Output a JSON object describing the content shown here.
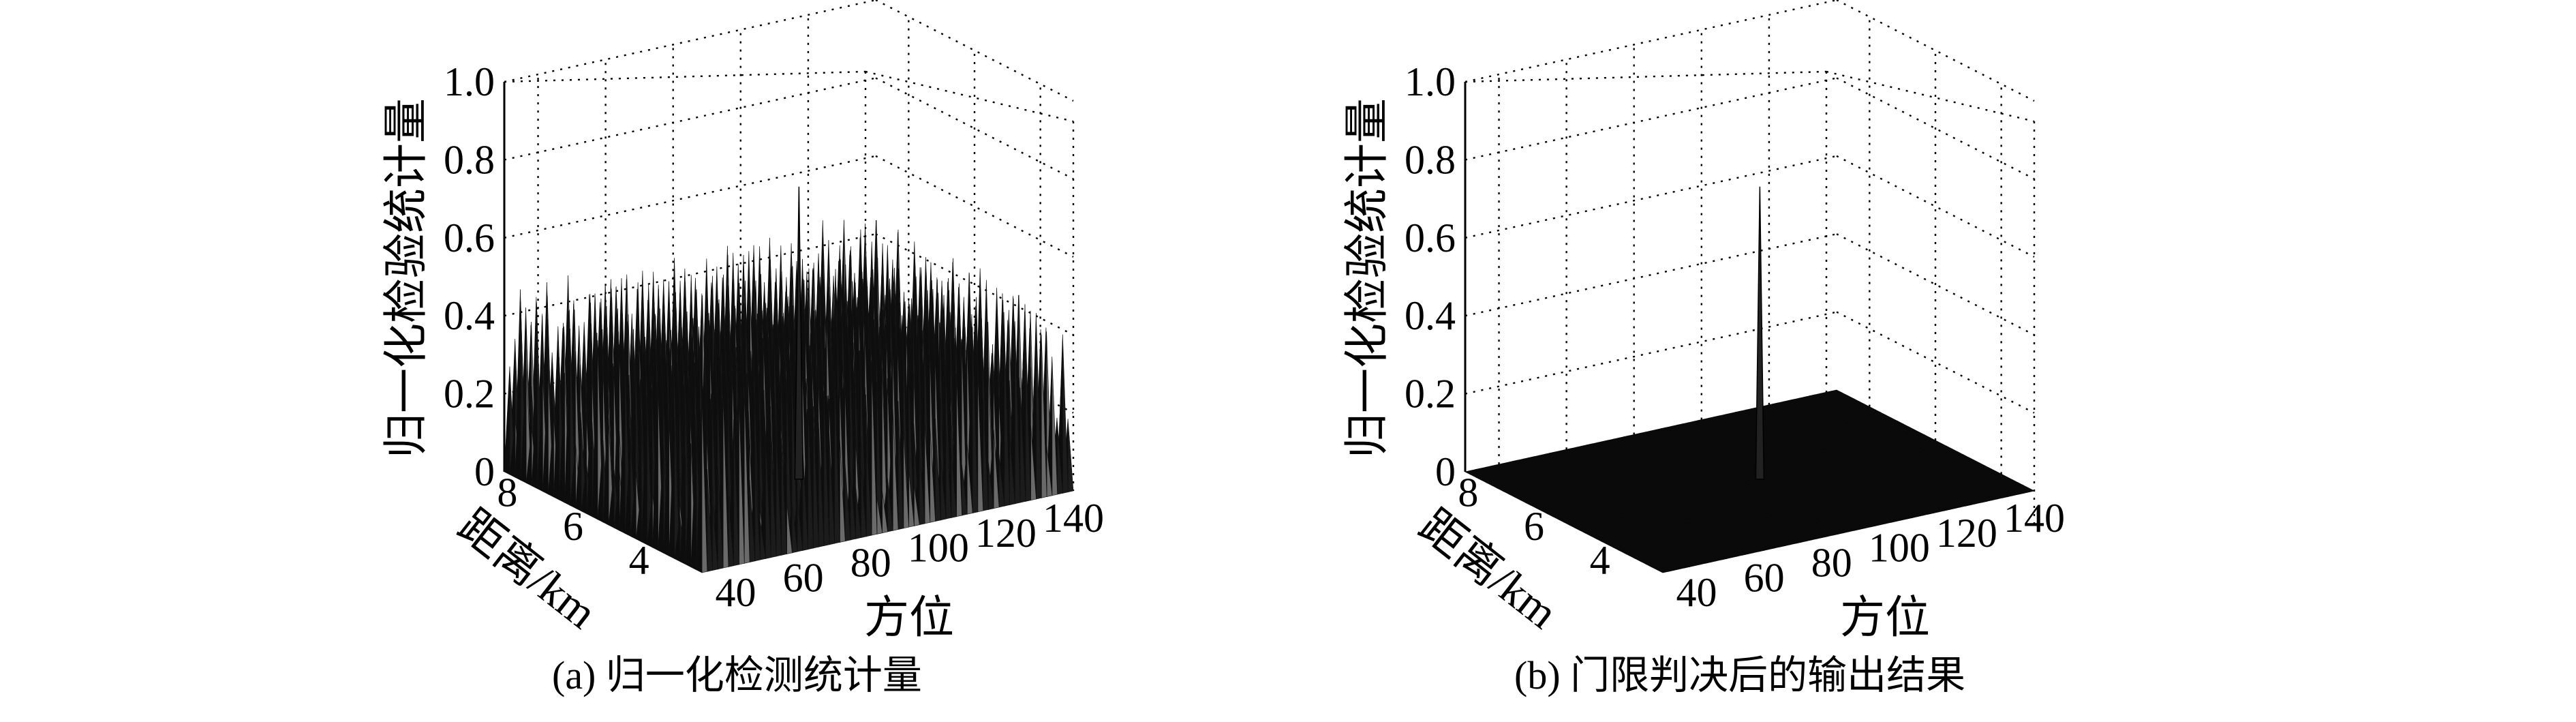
{
  "chart_data": [
    {
      "panel": "a",
      "type": "surface",
      "caption": "(a) 归一化检测统计量",
      "zlabel": "归一化检验统计量",
      "ylabel": "距离/km",
      "xlabel": "方位",
      "z_ticks": [
        "0",
        "0.2",
        "0.4",
        "0.6",
        "0.8",
        "1.0"
      ],
      "y_ticks": [
        "8",
        "6",
        "4"
      ],
      "x_ticks": [
        "40",
        "60",
        "80",
        "100",
        "120",
        "140"
      ],
      "zlim": [
        0,
        1.0
      ],
      "ylim": [
        3,
        9
      ],
      "xlim": [
        30,
        140
      ],
      "grid": true,
      "background_level": 0.35,
      "background_max": 0.5,
      "peak": {
        "x": 88,
        "y": 6,
        "z": 0.75
      }
    },
    {
      "panel": "b",
      "type": "surface",
      "caption": "(b) 门限判决后的输出结果",
      "zlabel": "归一化检验统计量",
      "ylabel": "距离/km",
      "xlabel": "方位",
      "z_ticks": [
        "0",
        "0.2",
        "0.4",
        "0.6",
        "0.8",
        "1.0"
      ],
      "y_ticks": [
        "8",
        "6",
        "4"
      ],
      "x_ticks": [
        "40",
        "60",
        "80",
        "100",
        "120",
        "140"
      ],
      "zlim": [
        0,
        1.0
      ],
      "ylim": [
        3,
        9
      ],
      "xlim": [
        30,
        140
      ],
      "grid": true,
      "background_level": 0,
      "background_max": 0,
      "peak": {
        "x": 88,
        "y": 6,
        "z": 0.75
      }
    }
  ],
  "colors": {
    "surface": "#1c1c1c",
    "surface_light": "#6a6a6a",
    "grid": "#000000"
  }
}
